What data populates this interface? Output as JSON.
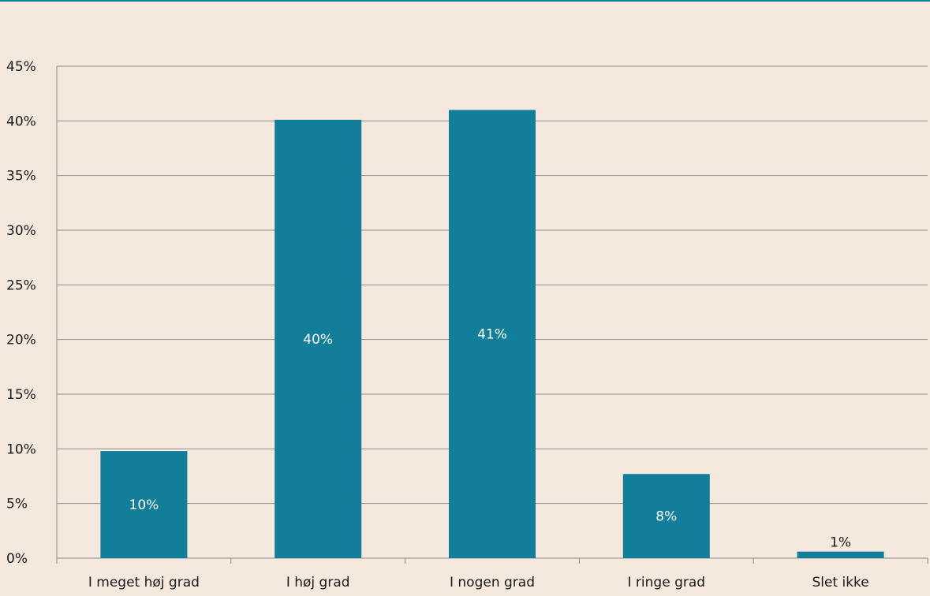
{
  "chart_data": {
    "type": "bar",
    "categories": [
      "I meget høj grad",
      "I høj grad",
      "I nogen grad",
      "I ringe grad",
      "Slet ikke"
    ],
    "values": [
      9.8,
      40.1,
      41.0,
      7.7,
      0.6
    ],
    "data_labels": [
      "10%",
      "40%",
      "41%",
      "8%",
      "1%"
    ],
    "yticks": [
      "0%",
      "5%",
      "10%",
      "15%",
      "20%",
      "25%",
      "30%",
      "35%",
      "40%",
      "45%"
    ],
    "ylim": [
      0,
      45
    ],
    "title": "",
    "xlabel": "",
    "ylabel": "",
    "grid": true,
    "colors": {
      "bar": "#127e9a",
      "grid": "#8c8c8c",
      "background": "#f5e8dc",
      "label_inside": "#ffffff",
      "label_outside": "#1a1a1a"
    }
  }
}
